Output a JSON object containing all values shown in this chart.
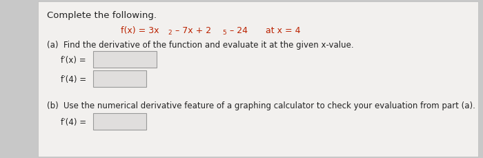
{
  "background_color": "#c8c8c8",
  "panel_color": "#f2f0ee",
  "title": "Complete the following.",
  "part_a_label": "(a)",
  "part_a_text": "Find the derivative of the function and evaluate it at the given x-value.",
  "fpx_label": "f′(x) =",
  "fp4_label": "f′(4) =",
  "part_b_label": "(b)",
  "part_b_text": "Use the numerical derivative feature of a graphing calculator to check your evaluation from part (a).",
  "fp4b_label": "f′(4) =",
  "box_facecolor": "#e0dedd",
  "box_edgecolor": "#999999",
  "red_color": "#bb2200",
  "dark_color": "#222222",
  "font_size_title": 9.5,
  "font_size_body": 8.5,
  "font_size_eq": 9.0,
  "font_size_sup": 6.5
}
